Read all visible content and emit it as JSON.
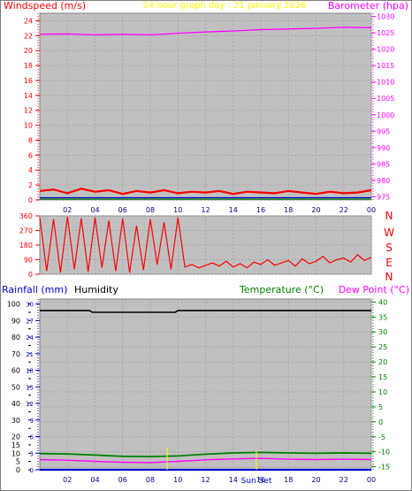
{
  "wind_panel": {
    "left_title": "Windspeed (m/s)",
    "center_title": "24 hour graph day : 21 January 2026",
    "right_title": "Barometer (hpa)",
    "colors": {
      "wind": "#ff0000",
      "baro": "#ff00ff",
      "title_center": "#ffff00"
    }
  },
  "dir_panel": {
    "compass_labels": [
      "N",
      "W",
      "S",
      "E",
      "N"
    ]
  },
  "temp_panel": {
    "left_title_rain": "Rainfall (mm)",
    "left_title_hum": "Humidity",
    "right_title_temp": "Temperature (°C)",
    "right_title_dew": "Dew Point (°C)",
    "marker_labels": [
      "Sun Set"
    ],
    "colors": {
      "rain": "#0000cc",
      "temp": "#008000",
      "dew": "#ff00ff",
      "humidity": "#000000"
    }
  },
  "chart_data": [
    {
      "type": "line",
      "x_ticks": [
        "02",
        "04",
        "06",
        "08",
        "10",
        "12",
        "14",
        "16",
        "18",
        "20",
        "22",
        "00"
      ],
      "y_left": {
        "ticks": [
          0,
          2,
          4,
          6,
          8,
          10,
          12,
          14,
          16,
          18,
          20,
          22,
          24
        ],
        "range": [
          0,
          25
        ]
      },
      "y_right": {
        "ticks": [
          975,
          980,
          985,
          990,
          995,
          1000,
          1005,
          1010,
          1015,
          1020,
          1025,
          1030
        ],
        "range": [
          974,
          1031
        ]
      },
      "series": [
        {
          "name": "Barometer (hpa)",
          "axis": "right",
          "x": [
            0,
            2,
            4,
            6,
            8,
            10,
            12,
            14,
            16,
            18,
            20,
            22,
            24
          ],
          "values": [
            1024.6,
            1024.7,
            1024.4,
            1024.6,
            1024.4,
            1024.9,
            1025.3,
            1025.6,
            1026.0,
            1026.2,
            1026.4,
            1026.7,
            1026.6
          ]
        },
        {
          "name": "Windspeed (m/s)",
          "axis": "left",
          "x": [
            0,
            1,
            2,
            3,
            4,
            5,
            6,
            7,
            8,
            9,
            10,
            11,
            12,
            13,
            14,
            15,
            16,
            17,
            18,
            19,
            20,
            21,
            22,
            23,
            24
          ],
          "values": [
            1.2,
            1.4,
            0.9,
            1.5,
            1.1,
            1.3,
            0.8,
            1.2,
            1.0,
            1.3,
            0.9,
            1.1,
            1.0,
            1.2,
            0.8,
            1.1,
            1.0,
            0.9,
            1.2,
            1.0,
            0.8,
            1.1,
            0.9,
            1.0,
            1.3
          ]
        }
      ]
    },
    {
      "type": "line",
      "x_ticks": [
        "02",
        "04",
        "06",
        "08",
        "10",
        "12",
        "14",
        "16",
        "18",
        "20",
        "22",
        "00"
      ],
      "y_left": {
        "ticks": [
          0,
          90,
          180,
          270,
          360
        ],
        "range": [
          0,
          360
        ]
      },
      "series": [
        {
          "name": "Wind direction",
          "x": [
            0,
            0.5,
            1,
            1.5,
            2,
            2.5,
            3,
            3.5,
            4,
            4.5,
            5,
            5.5,
            6,
            6.5,
            7,
            7.5,
            8,
            8.5,
            9,
            9.5,
            10,
            10.5,
            11,
            11.5,
            12,
            12.5,
            13,
            13.5,
            14,
            14.5,
            15,
            15.5,
            16,
            16.5,
            17,
            17.5,
            18,
            18.5,
            19,
            19.5,
            20,
            20.5,
            21,
            21.5,
            22,
            22.5,
            23,
            23.5,
            24
          ],
          "values": [
            350,
            20,
            340,
            10,
            355,
            30,
            345,
            15,
            350,
            40,
            330,
            20,
            345,
            10,
            300,
            25,
            340,
            60,
            320,
            30,
            350,
            45,
            60,
            40,
            55,
            70,
            50,
            80,
            45,
            65,
            40,
            75,
            60,
            90,
            55,
            70,
            85,
            50,
            95,
            65,
            80,
            110,
            70,
            90,
            100,
            75,
            120,
            85,
            105
          ]
        }
      ]
    },
    {
      "type": "line",
      "x_ticks": [
        "02",
        "04",
        "06",
        "08",
        "10",
        "12",
        "14",
        "16",
        "18",
        "20",
        "22",
        "00"
      ],
      "y_left": {
        "ticks": [
          0,
          5,
          10,
          15,
          20,
          25,
          30,
          35,
          40,
          45,
          50,
          55,
          60,
          65,
          70,
          75,
          80,
          85,
          90,
          95,
          100
        ],
        "range": [
          0,
          103
        ]
      },
      "y_left_inner": {
        "ticks": [
          0,
          3,
          6,
          9,
          12,
          15,
          18,
          21,
          24,
          27,
          30
        ],
        "range": [
          0,
          30.9
        ]
      },
      "y_right": {
        "ticks": [
          -15,
          -10,
          -5,
          0,
          5,
          10,
          15,
          20,
          25,
          30,
          35,
          40
        ],
        "range": [
          -16,
          41
        ]
      },
      "series": [
        {
          "name": "Humidity",
          "axis": "left",
          "x": [
            0,
            3.6,
            3.8,
            6,
            9.8,
            10,
            24
          ],
          "values": [
            96,
            96,
            95,
            95,
            95,
            96,
            96
          ]
        },
        {
          "name": "Temperature (°C)",
          "axis": "right",
          "x": [
            0,
            2,
            4,
            6,
            8,
            10,
            12,
            14,
            16,
            18,
            20,
            22,
            24
          ],
          "values": [
            -10.6,
            -10.7,
            -11.1,
            -11.5,
            -11.6,
            -11.4,
            -10.8,
            -10.4,
            -10.2,
            -10.4,
            -10.5,
            -10.4,
            -10.5
          ]
        },
        {
          "name": "Dew Point (°C)",
          "axis": "right",
          "x": [
            0,
            2,
            4,
            6,
            8,
            10,
            12,
            14,
            16,
            18,
            20,
            22,
            24
          ],
          "values": [
            -12.6,
            -12.8,
            -13.2,
            -13.5,
            -13.6,
            -13.2,
            -12.7,
            -12.4,
            -12.2,
            -12.5,
            -12.6,
            -12.5,
            -12.6
          ]
        },
        {
          "name": "Rainfall (mm)",
          "axis": "left_inner",
          "x": [
            0,
            24
          ],
          "values": [
            0,
            0
          ]
        }
      ]
    }
  ]
}
